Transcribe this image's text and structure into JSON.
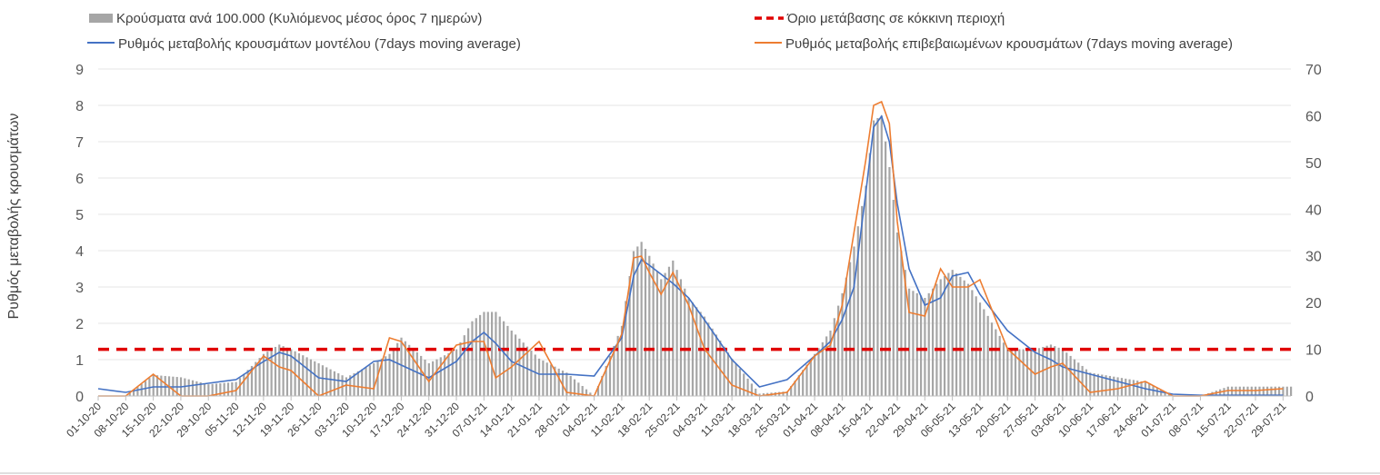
{
  "chart_data": {
    "type": "bar+line",
    "title": "",
    "ylabel_left": "Ρυθμός μεταβολής κρουσμάτων",
    "ylim_left": [
      0,
      9
    ],
    "yticks_left": [
      0,
      1,
      2,
      3,
      4,
      5,
      6,
      7,
      8,
      9
    ],
    "ylim_right": [
      0,
      70
    ],
    "yticks_right": [
      0,
      10,
      20,
      30,
      40,
      50,
      60,
      70
    ],
    "x_start": "2020-10-01",
    "x_end": "2021-07-31",
    "x_tick_labels": [
      "01-10-20",
      "08-10-20",
      "15-10-20",
      "22-10-20",
      "29-10-20",
      "05-11-20",
      "12-11-20",
      "19-11-20",
      "26-11-20",
      "03-12-20",
      "10-12-20",
      "17-12-20",
      "24-12-20",
      "31-12-20",
      "07-01-21",
      "14-01-21",
      "21-01-21",
      "28-01-21",
      "04-02-21",
      "11-02-21",
      "18-02-21",
      "25-02-21",
      "04-03-21",
      "11-03-21",
      "18-03-21",
      "25-03-21",
      "01-04-21",
      "08-04-21",
      "15-04-21",
      "22-04-21",
      "29-04-21",
      "06-05-21",
      "13-05-21",
      "20-05-21",
      "27-05-21",
      "03-06-21",
      "10-06-21",
      "17-06-21",
      "24-06-21",
      "01-07-21",
      "08-07-21",
      "15-07-21",
      "22-07-21",
      "29-07-21"
    ],
    "legend_position": "top",
    "series": [
      {
        "name": "Κρούσματα ανά 100.000 (Κυλιόμενος μέσος όρος 7 ημερών)",
        "type": "bar",
        "axis": "right",
        "color": "#a6a6a6",
        "x": [
          "2020-10-01",
          "2020-10-08",
          "2020-10-15",
          "2020-10-22",
          "2020-10-29",
          "2020-11-05",
          "2020-11-12",
          "2020-11-16",
          "2020-11-19",
          "2020-11-26",
          "2020-12-03",
          "2020-12-10",
          "2020-12-14",
          "2020-12-17",
          "2020-12-24",
          "2020-12-31",
          "2021-01-04",
          "2021-01-07",
          "2021-01-10",
          "2021-01-14",
          "2021-01-21",
          "2021-01-28",
          "2021-02-04",
          "2021-02-11",
          "2021-02-14",
          "2021-02-16",
          "2021-02-18",
          "2021-02-21",
          "2021-02-24",
          "2021-02-28",
          "2021-03-04",
          "2021-03-11",
          "2021-03-18",
          "2021-03-25",
          "2021-04-01",
          "2021-04-05",
          "2021-04-08",
          "2021-04-11",
          "2021-04-14",
          "2021-04-16",
          "2021-04-18",
          "2021-04-20",
          "2021-04-22",
          "2021-04-25",
          "2021-04-29",
          "2021-05-03",
          "2021-05-06",
          "2021-05-10",
          "2021-05-13",
          "2021-05-20",
          "2021-05-27",
          "2021-05-31",
          "2021-06-03",
          "2021-06-10",
          "2021-06-17",
          "2021-06-24",
          "2021-07-01",
          "2021-07-08",
          "2021-07-15",
          "2021-07-22",
          "2021-07-29"
        ],
        "values": [
          0,
          0,
          4.5,
          4,
          2.5,
          3,
          9,
          11,
          10,
          7,
          4,
          7,
          9,
          12.5,
          7,
          10,
          16,
          18,
          18,
          14,
          8,
          5,
          0,
          15,
          31,
          33,
          30,
          25,
          29,
          21,
          17,
          8,
          0.5,
          1,
          9,
          14,
          22,
          32,
          45,
          59,
          60,
          49,
          35,
          23,
          21,
          25,
          27,
          24,
          20,
          10,
          10,
          11,
          10,
          5,
          4,
          3,
          0,
          0,
          2,
          2,
          2
        ]
      },
      {
        "name": "Ρυθμός μεταβολής κρουσμάτων μοντέλου (7days moving average)",
        "type": "line",
        "axis": "left",
        "color": "#4472c4",
        "x": [
          "2020-10-01",
          "2020-10-08",
          "2020-10-15",
          "2020-10-22",
          "2020-10-29",
          "2020-11-05",
          "2020-11-12",
          "2020-11-16",
          "2020-11-19",
          "2020-11-26",
          "2020-12-03",
          "2020-12-10",
          "2020-12-14",
          "2020-12-17",
          "2020-12-24",
          "2020-12-31",
          "2021-01-04",
          "2021-01-07",
          "2021-01-10",
          "2021-01-14",
          "2021-01-21",
          "2021-01-28",
          "2021-02-04",
          "2021-02-11",
          "2021-02-14",
          "2021-02-16",
          "2021-02-18",
          "2021-02-21",
          "2021-02-24",
          "2021-02-28",
          "2021-03-04",
          "2021-03-11",
          "2021-03-18",
          "2021-03-25",
          "2021-04-01",
          "2021-04-05",
          "2021-04-08",
          "2021-04-11",
          "2021-04-14",
          "2021-04-16",
          "2021-04-18",
          "2021-04-20",
          "2021-04-22",
          "2021-04-25",
          "2021-04-29",
          "2021-05-03",
          "2021-05-06",
          "2021-05-10",
          "2021-05-13",
          "2021-05-20",
          "2021-05-27",
          "2021-05-31",
          "2021-06-03",
          "2021-06-10",
          "2021-06-17",
          "2021-06-24",
          "2021-07-01",
          "2021-07-08",
          "2021-07-15",
          "2021-07-22",
          "2021-07-29"
        ],
        "values": [
          0.2,
          0.1,
          0.25,
          0.25,
          0.35,
          0.45,
          0.95,
          1.2,
          1.1,
          0.5,
          0.4,
          0.95,
          1.0,
          0.85,
          0.5,
          0.95,
          1.5,
          1.75,
          1.45,
          0.95,
          0.6,
          0.6,
          0.55,
          1.6,
          3.3,
          3.75,
          3.6,
          3.35,
          3.1,
          2.7,
          2.1,
          1.0,
          0.25,
          0.45,
          1.1,
          1.5,
          2.1,
          3.0,
          5.6,
          7.4,
          7.7,
          7.0,
          5.3,
          3.5,
          2.5,
          2.7,
          3.3,
          3.4,
          2.8,
          1.8,
          1.2,
          1.0,
          0.8,
          0.6,
          0.4,
          0.2,
          0.05,
          0.02,
          0.02,
          0.02,
          0.02
        ]
      },
      {
        "name": "Ρυθμός μεταβολής επιβεβαιωμένων κρουσμάτων (7days moving average)",
        "type": "line",
        "axis": "left",
        "color": "#ed7d31",
        "x": [
          "2020-10-01",
          "2020-10-08",
          "2020-10-15",
          "2020-10-22",
          "2020-10-29",
          "2020-11-05",
          "2020-11-12",
          "2020-11-16",
          "2020-11-19",
          "2020-11-26",
          "2020-12-03",
          "2020-12-10",
          "2020-12-14",
          "2020-12-17",
          "2020-12-24",
          "2020-12-31",
          "2021-01-04",
          "2021-01-07",
          "2021-01-10",
          "2021-01-14",
          "2021-01-21",
          "2021-01-28",
          "2021-02-04",
          "2021-02-11",
          "2021-02-14",
          "2021-02-16",
          "2021-02-18",
          "2021-02-21",
          "2021-02-24",
          "2021-02-28",
          "2021-03-04",
          "2021-03-11",
          "2021-03-18",
          "2021-03-25",
          "2021-04-01",
          "2021-04-05",
          "2021-04-08",
          "2021-04-11",
          "2021-04-14",
          "2021-04-16",
          "2021-04-18",
          "2021-04-20",
          "2021-04-22",
          "2021-04-25",
          "2021-04-29",
          "2021-05-03",
          "2021-05-06",
          "2021-05-10",
          "2021-05-13",
          "2021-05-20",
          "2021-05-27",
          "2021-05-31",
          "2021-06-03",
          "2021-06-10",
          "2021-06-17",
          "2021-06-24",
          "2021-07-01",
          "2021-07-08",
          "2021-07-15",
          "2021-07-22",
          "2021-07-29"
        ],
        "values": [
          0,
          0,
          0.6,
          0,
          0,
          0.15,
          1.1,
          0.8,
          0.7,
          0,
          0.3,
          0.2,
          1.6,
          1.5,
          0.4,
          1.4,
          1.5,
          1.5,
          0.5,
          0.8,
          1.5,
          0.1,
          0,
          1.7,
          3.8,
          3.85,
          3.4,
          2.8,
          3.4,
          2.5,
          1.3,
          0.3,
          0,
          0.1,
          1.1,
          1.4,
          2.5,
          4.5,
          6.5,
          8.0,
          8.1,
          7.5,
          4.8,
          2.3,
          2.2,
          3.5,
          3.0,
          3.0,
          3.2,
          1.3,
          0.6,
          0.8,
          0.9,
          0.1,
          0.2,
          0.4,
          0,
          0,
          0.15,
          0.15,
          0.2
        ]
      },
      {
        "name": "Όριο μετάβασης σε κόκκινη περιοχή",
        "type": "line",
        "axis": "right",
        "style": "dashed",
        "color": "#e00000",
        "value": 10
      }
    ]
  }
}
